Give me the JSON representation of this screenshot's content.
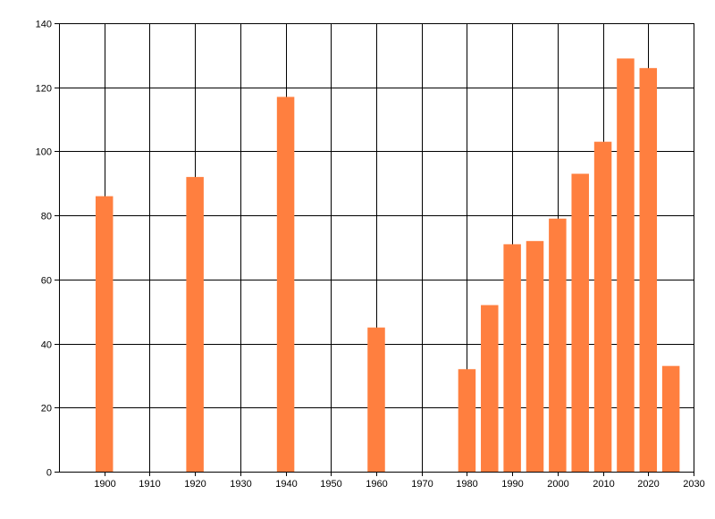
{
  "chart_data": {
    "type": "bar",
    "title": "",
    "xlabel": "",
    "ylabel": "",
    "xlim": [
      1890,
      2030
    ],
    "ylim": [
      0,
      140
    ],
    "x_ticks": [
      1900,
      1910,
      1920,
      1930,
      1940,
      1950,
      1960,
      1970,
      1980,
      1990,
      2000,
      2010,
      2020,
      2030
    ],
    "y_ticks": [
      0,
      20,
      40,
      60,
      80,
      100,
      120,
      140
    ],
    "grid": true,
    "legend": "none",
    "bar_color": "#FF7F3F",
    "series": [
      {
        "x": [
          1900,
          1920,
          1940,
          1960,
          1980,
          1985,
          1990,
          1995,
          2000,
          2005,
          2010,
          2015,
          2020,
          2025
        ],
        "values": [
          86,
          92,
          117,
          45,
          32,
          52,
          71,
          72,
          79,
          93,
          103,
          129,
          126,
          33
        ]
      }
    ]
  }
}
